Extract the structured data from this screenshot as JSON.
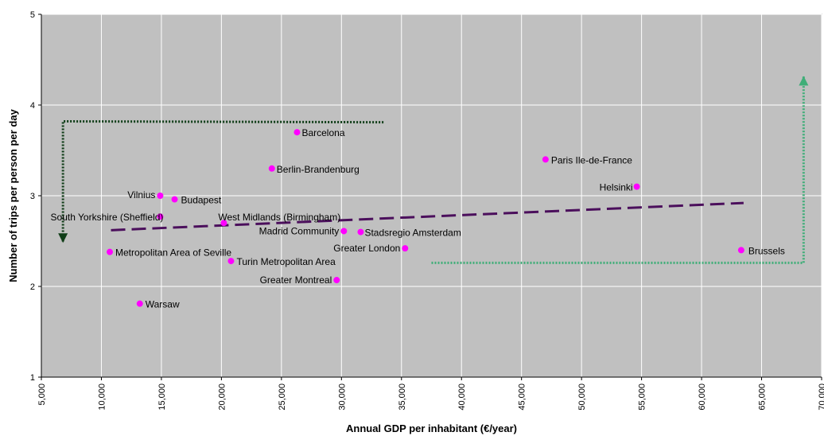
{
  "chart_data": {
    "type": "scatter",
    "title": "",
    "xlabel": "Annual GDP per inhabitant (€/year)",
    "ylabel": "Number of trips per person per day",
    "xlim": [
      5000,
      70000
    ],
    "ylim": [
      1,
      5
    ],
    "x_ticks": [
      5000,
      10000,
      15000,
      20000,
      25000,
      30000,
      35000,
      40000,
      45000,
      50000,
      55000,
      60000,
      65000,
      70000
    ],
    "x_tick_labels": [
      "5,000",
      "10,000",
      "15,000",
      "20,000",
      "25,000",
      "30,000",
      "35,000",
      "40,000",
      "45,000",
      "50,000",
      "55,000",
      "60,000",
      "65,000",
      "70,000"
    ],
    "y_ticks": [
      1,
      2,
      3,
      4,
      5
    ],
    "y_tick_labels": [
      "1",
      "2",
      "3",
      "4",
      "5"
    ],
    "grid": true,
    "legend": "none",
    "colors": {
      "plot_background": "#c0c0c0",
      "grid": "#ffffff",
      "point": "#ff00ff",
      "trendline": "#4b0f5c",
      "arrow_left": "#0f3d17",
      "arrow_right": "#3fae78"
    },
    "points": [
      {
        "name": "Barcelona",
        "x": 26300,
        "y": 3.7
      },
      {
        "name": "Berlin-Brandenburg",
        "x": 24200,
        "y": 3.3
      },
      {
        "name": "Paris Ile-de-France",
        "x": 47000,
        "y": 3.4
      },
      {
        "name": "Helsinki",
        "x": 54600,
        "y": 3.1
      },
      {
        "name": "Vilnius",
        "x": 14900,
        "y": 3.0
      },
      {
        "name": "Budapest",
        "x": 16100,
        "y": 2.96
      },
      {
        "name": "South Yorkshire (Sheffield)",
        "x": 14900,
        "y": 2.77
      },
      {
        "name": "West Midlands (Birmingham)",
        "x": 20200,
        "y": 2.7
      },
      {
        "name": "Madrid Community",
        "x": 30200,
        "y": 2.61
      },
      {
        "name": "Stadsregio Amsterdam",
        "x": 31600,
        "y": 2.6
      },
      {
        "name": "Greater London",
        "x": 35300,
        "y": 2.42
      },
      {
        "name": "Brussels",
        "x": 63300,
        "y": 2.4
      },
      {
        "name": "Metropolitan Area of Seville",
        "x": 10700,
        "y": 2.38
      },
      {
        "name": "Turin Metropolitan Area",
        "x": 20800,
        "y": 2.28
      },
      {
        "name": "Greater Montreal",
        "x": 29600,
        "y": 2.07
      },
      {
        "name": "Warsaw",
        "x": 13200,
        "y": 1.81
      }
    ],
    "trendline": {
      "style": "dashed",
      "from": {
        "x": 10800,
        "y": 2.62
      },
      "to": {
        "x": 63500,
        "y": 2.92
      }
    },
    "annotations": [
      {
        "type": "dotted-arrow",
        "path": [
          {
            "x": 33500,
            "y": 3.81
          },
          {
            "x": 6800,
            "y": 3.82
          },
          {
            "x": 6800,
            "y": 2.48
          }
        ]
      },
      {
        "type": "dotted-arrow",
        "path": [
          {
            "x": 37500,
            "y": 2.26
          },
          {
            "x": 68500,
            "y": 2.26
          },
          {
            "x": 68500,
            "y": 4.32
          }
        ]
      }
    ]
  }
}
